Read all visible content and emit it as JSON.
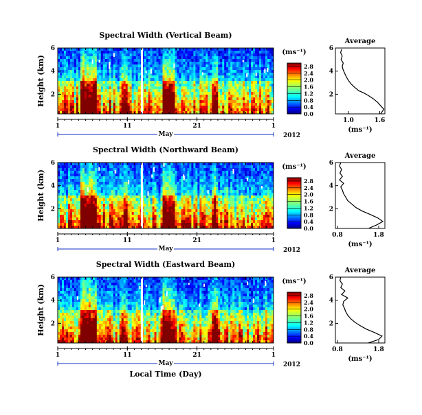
{
  "figure": {
    "colorbar_unit": "(ms⁻¹)",
    "average_title": "Average",
    "average_xlabel": "(ms⁻¹)",
    "x_axis_label": "Local Time (Day)",
    "month_label": "May",
    "year_label": "2012",
    "height_label": "Height (km)"
  },
  "chart_data": [
    {
      "type": "heatmap",
      "title": "Spectral Width (Vertical Beam)",
      "ylabel": "Height (km)",
      "xlabel": "",
      "x_ticks": [
        "1",
        "11",
        "21",
        "1"
      ],
      "y_ticks": [
        "6",
        "4",
        "2"
      ],
      "ylim": [
        0.3,
        6
      ],
      "colorbar_ticks": [
        "0.0",
        "0.4",
        "0.8",
        "1.2",
        "1.6",
        "2.0",
        "2.4",
        "2.8"
      ],
      "colorbar_range": [
        0,
        3
      ],
      "average": {
        "title": "Average",
        "xlabel": "(ms⁻¹)",
        "x_ticks": [
          "1.0",
          "1.6"
        ],
        "y_ticks": [
          "6",
          "4",
          "2"
        ],
        "xlim": [
          0.75,
          1.7
        ],
        "ylim": [
          0.3,
          6
        ],
        "profile": {
          "height": [
            0.3,
            0.5,
            0.7,
            1.0,
            1.3,
            1.6,
            1.9,
            2.1,
            2.3,
            2.6,
            2.9,
            3.2,
            3.5,
            3.8,
            4.1,
            4.4,
            4.7,
            5.0,
            5.3,
            5.6,
            5.9
          ],
          "value": [
            1.62,
            1.65,
            1.68,
            1.62,
            1.56,
            1.48,
            1.38,
            1.3,
            1.2,
            1.12,
            1.05,
            1.0,
            0.96,
            0.93,
            0.9,
            0.88,
            0.9,
            0.86,
            0.88,
            0.85,
            0.87
          ]
        }
      }
    },
    {
      "type": "heatmap",
      "title": "Spectral Width (Northward Beam)",
      "ylabel": "Height (km)",
      "xlabel": "",
      "x_ticks": [
        "1",
        "11",
        "21",
        "1"
      ],
      "y_ticks": [
        "6",
        "4",
        "2"
      ],
      "ylim": [
        0.3,
        6
      ],
      "colorbar_ticks": [
        "0.0",
        "0.4",
        "0.8",
        "1.2",
        "1.6",
        "2.0",
        "2.4",
        "2.8"
      ],
      "colorbar_range": [
        0,
        3
      ],
      "average": {
        "title": "Average",
        "xlabel": "(ms⁻¹)",
        "x_ticks": [
          "0.8",
          "1.8"
        ],
        "y_ticks": [
          "6",
          "4",
          "2"
        ],
        "xlim": [
          0.75,
          1.95
        ],
        "ylim": [
          0.3,
          6
        ],
        "profile": {
          "height": [
            0.3,
            0.6,
            0.9,
            1.2,
            1.5,
            1.8,
            2.1,
            2.4,
            2.7,
            3.0,
            3.3,
            3.6,
            3.9,
            4.2,
            4.5,
            4.8,
            5.1,
            5.4,
            5.7,
            6.0
          ],
          "value": [
            1.55,
            1.75,
            1.9,
            1.78,
            1.6,
            1.4,
            1.25,
            1.15,
            1.05,
            1.0,
            0.95,
            0.92,
            0.88,
            0.95,
            0.85,
            0.92,
            0.86,
            0.9,
            0.85,
            0.88
          ]
        }
      }
    },
    {
      "type": "heatmap",
      "title": "Spectral Width (Eastward Beam)",
      "ylabel": "Height (km)",
      "xlabel": "Local Time (Day)",
      "x_ticks": [
        "1",
        "11",
        "21",
        "1"
      ],
      "y_ticks": [
        "6",
        "4",
        "2"
      ],
      "ylim": [
        0.3,
        6
      ],
      "colorbar_ticks": [
        "0.0",
        "0.4",
        "0.8",
        "1.2",
        "1.6",
        "2.0",
        "2.4",
        "2.8"
      ],
      "colorbar_range": [
        0,
        3
      ],
      "average": {
        "title": "Average",
        "xlabel": "(ms⁻¹)",
        "x_ticks": [
          "0.8",
          "1.8"
        ],
        "y_ticks": [
          "6",
          "4",
          "2"
        ],
        "xlim": [
          0.75,
          1.95
        ],
        "ylim": [
          0.3,
          6
        ],
        "profile": {
          "height": [
            0.3,
            0.6,
            0.9,
            1.2,
            1.5,
            1.8,
            2.1,
            2.4,
            2.7,
            3.0,
            3.3,
            3.6,
            3.9,
            4.2,
            4.5,
            4.8,
            5.1,
            5.4,
            5.7,
            6.0
          ],
          "value": [
            1.55,
            1.8,
            1.88,
            1.7,
            1.5,
            1.35,
            1.22,
            1.12,
            1.05,
            1.0,
            0.97,
            0.93,
            0.95,
            1.05,
            0.9,
            0.98,
            0.88,
            0.92,
            0.86,
            0.88
          ]
        }
      }
    }
  ]
}
